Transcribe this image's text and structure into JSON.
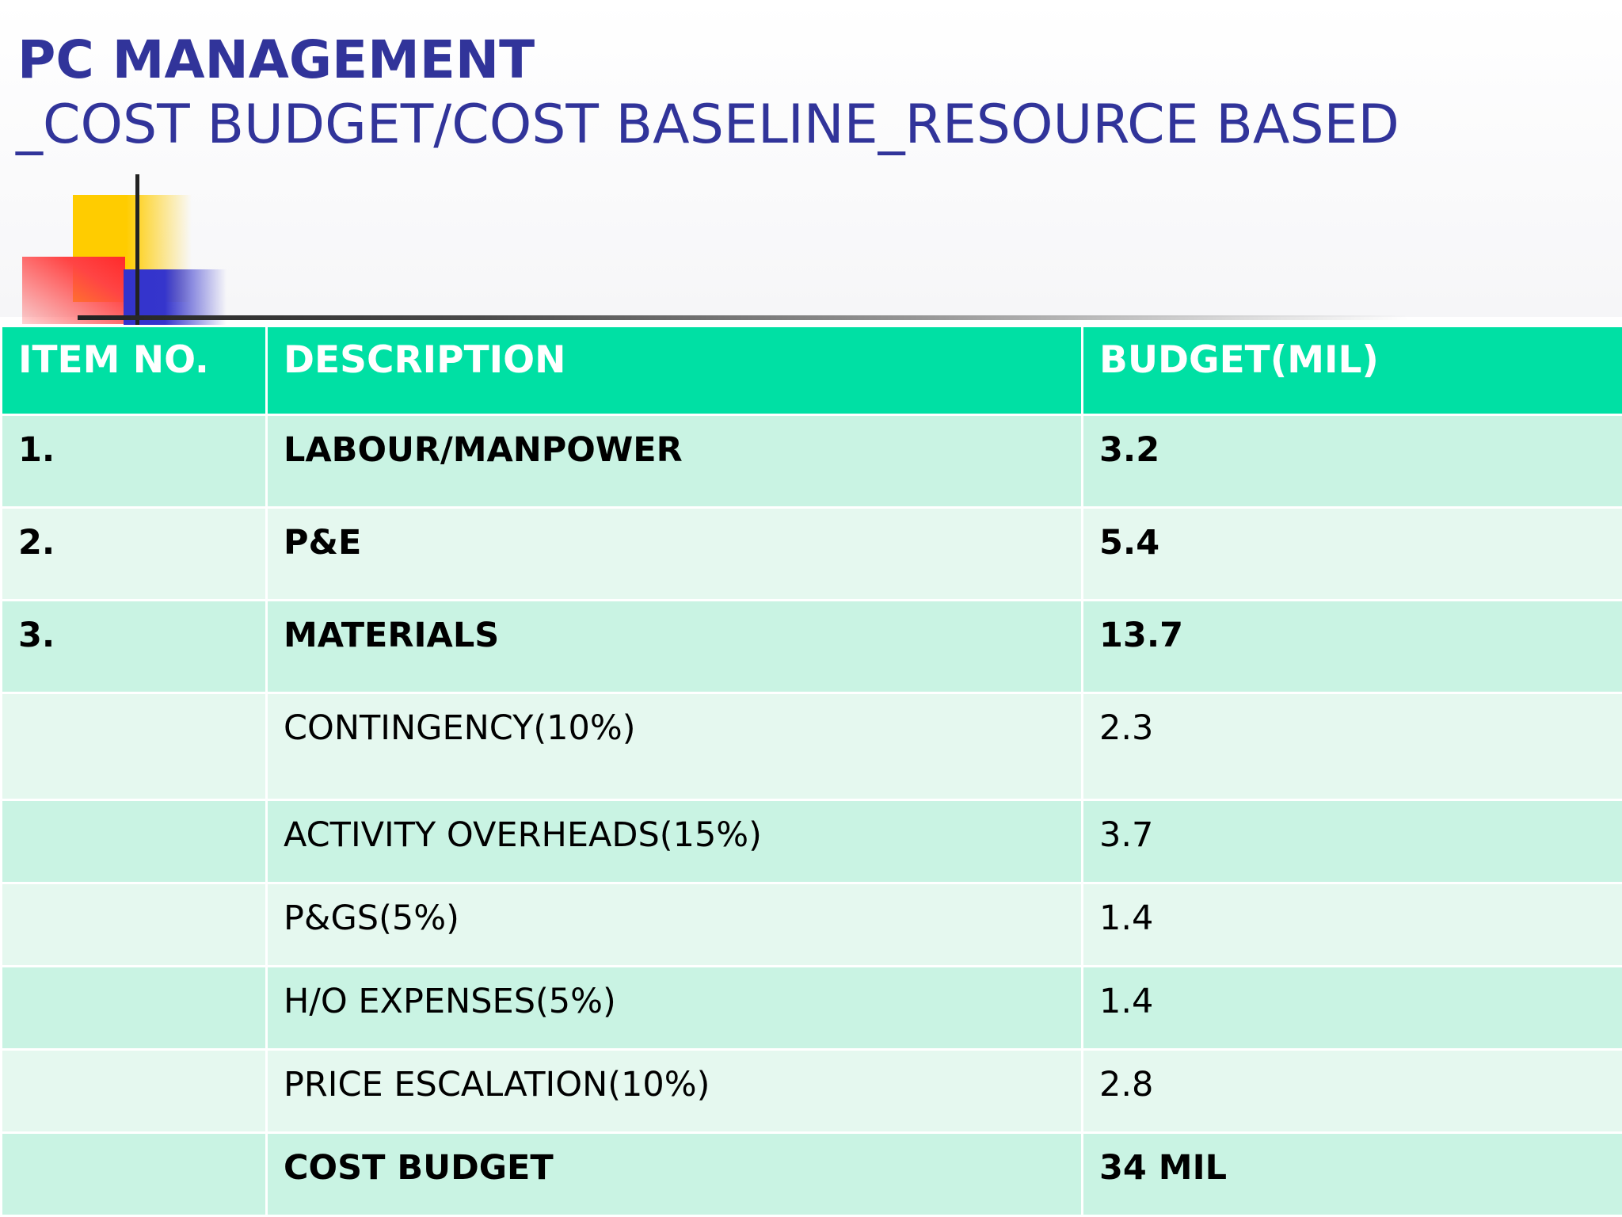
{
  "slide": {
    "title": "PC MANAGEMENT",
    "subtitle": "_COST BUDGET/COST BASELINE_RESOURCE BASED"
  },
  "colors": {
    "title": "#31349a",
    "header_bg": "#00e0a4",
    "row_dark": "#c9f3e3",
    "row_light": "#e5f8ef",
    "deco_yellow": "#ffcc00",
    "deco_red": "#ff3333",
    "deco_blue": "#3333cc"
  },
  "table": {
    "headers": [
      "ITEM NO.",
      "DESCRIPTION",
      "BUDGET(MIL)"
    ],
    "rows": [
      {
        "item": "1.",
        "description": "LABOUR/MANPOWER",
        "budget": "3.2",
        "bold": true
      },
      {
        "item": "2.",
        "description": "P&E",
        "budget": "5.4",
        "bold": true
      },
      {
        "item": "3.",
        "description": "MATERIALS",
        "budget": "13.7",
        "bold": true
      },
      {
        "item": "",
        "description": "CONTINGENCY(10%)",
        "budget": "2.3",
        "bold": false
      },
      {
        "item": "",
        "description": "ACTIVITY OVERHEADS(15%)",
        "budget": "3.7",
        "bold": false
      },
      {
        "item": "",
        "description": "P&GS(5%)",
        "budget": "1.4",
        "bold": false
      },
      {
        "item": "",
        "description": "H/O EXPENSES(5%)",
        "budget": "1.4",
        "bold": false
      },
      {
        "item": "",
        "description": "PRICE ESCALATION(10%)",
        "budget": "2.8",
        "bold": false
      },
      {
        "item": "",
        "description": "COST BUDGET",
        "budget": "34 MIL",
        "bold": true
      }
    ]
  }
}
